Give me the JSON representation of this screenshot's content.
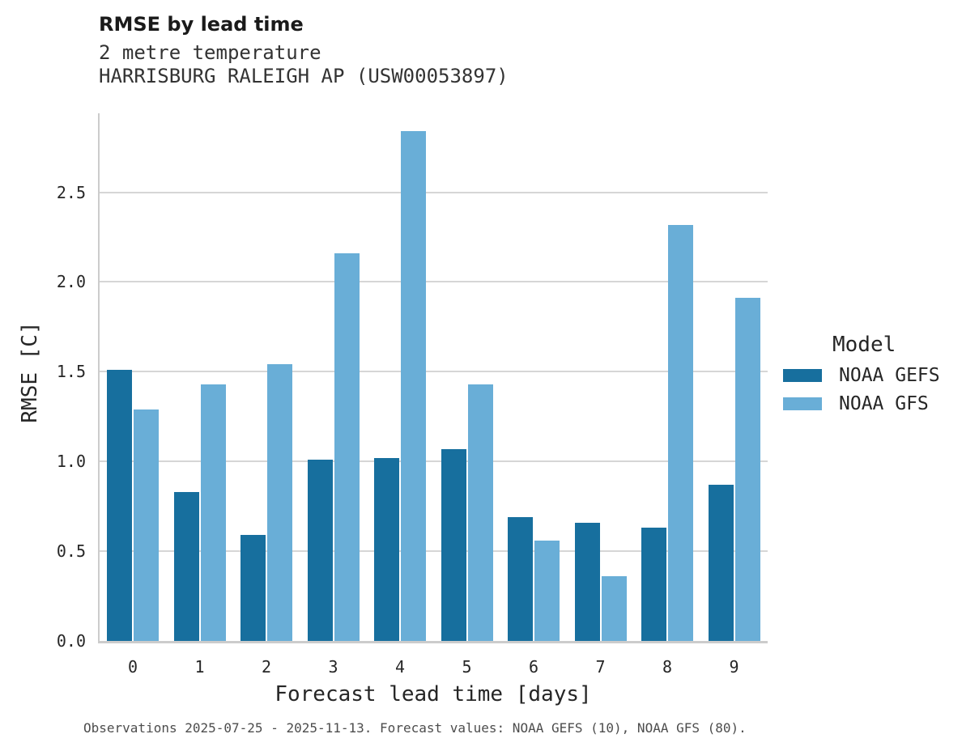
{
  "header": {
    "title": "RMSE by lead time",
    "subtitle_variable": "2 metre temperature",
    "subtitle_station": "HARRISBURG RALEIGH AP (USW00053897)"
  },
  "chart_data": {
    "type": "bar",
    "title": "RMSE by lead time",
    "subtitle": [
      "2 metre temperature",
      "HARRISBURG RALEIGH AP (USW00053897)"
    ],
    "categories": [
      "0",
      "1",
      "2",
      "3",
      "4",
      "5",
      "6",
      "7",
      "8",
      "9"
    ],
    "series": [
      {
        "name": "NOAA GEFS",
        "color": "#176f9e",
        "values": [
          1.51,
          0.83,
          0.59,
          1.01,
          1.02,
          1.07,
          0.69,
          0.66,
          0.63,
          0.87
        ]
      },
      {
        "name": "NOAA GFS",
        "color": "#69aed7",
        "values": [
          1.29,
          1.43,
          1.54,
          2.16,
          2.84,
          1.43,
          0.56,
          0.36,
          2.32,
          1.91
        ]
      }
    ],
    "xlabel": "Forecast lead time [days]",
    "ylabel": "RMSE [C]",
    "ylim": [
      0,
      2.94
    ],
    "yticks": [
      0,
      0.5,
      1,
      1.5,
      2,
      2.5
    ],
    "grid": "horizontal",
    "legend_position": "right"
  },
  "legend": {
    "title": "Model",
    "items": [
      {
        "label": "NOAA GEFS",
        "color": "#176f9e"
      },
      {
        "label": "NOAA GFS",
        "color": "#69aed7"
      }
    ]
  },
  "footer": {
    "caption": "Observations 2025-07-25 - 2025-11-13. Forecast values: NOAA GEFS (10), NOAA GFS (80)."
  },
  "colors": {
    "gefs": "#176f9e",
    "gfs": "#69aed7",
    "gridline": "#d6d6d6",
    "spine": "#cccccc"
  }
}
